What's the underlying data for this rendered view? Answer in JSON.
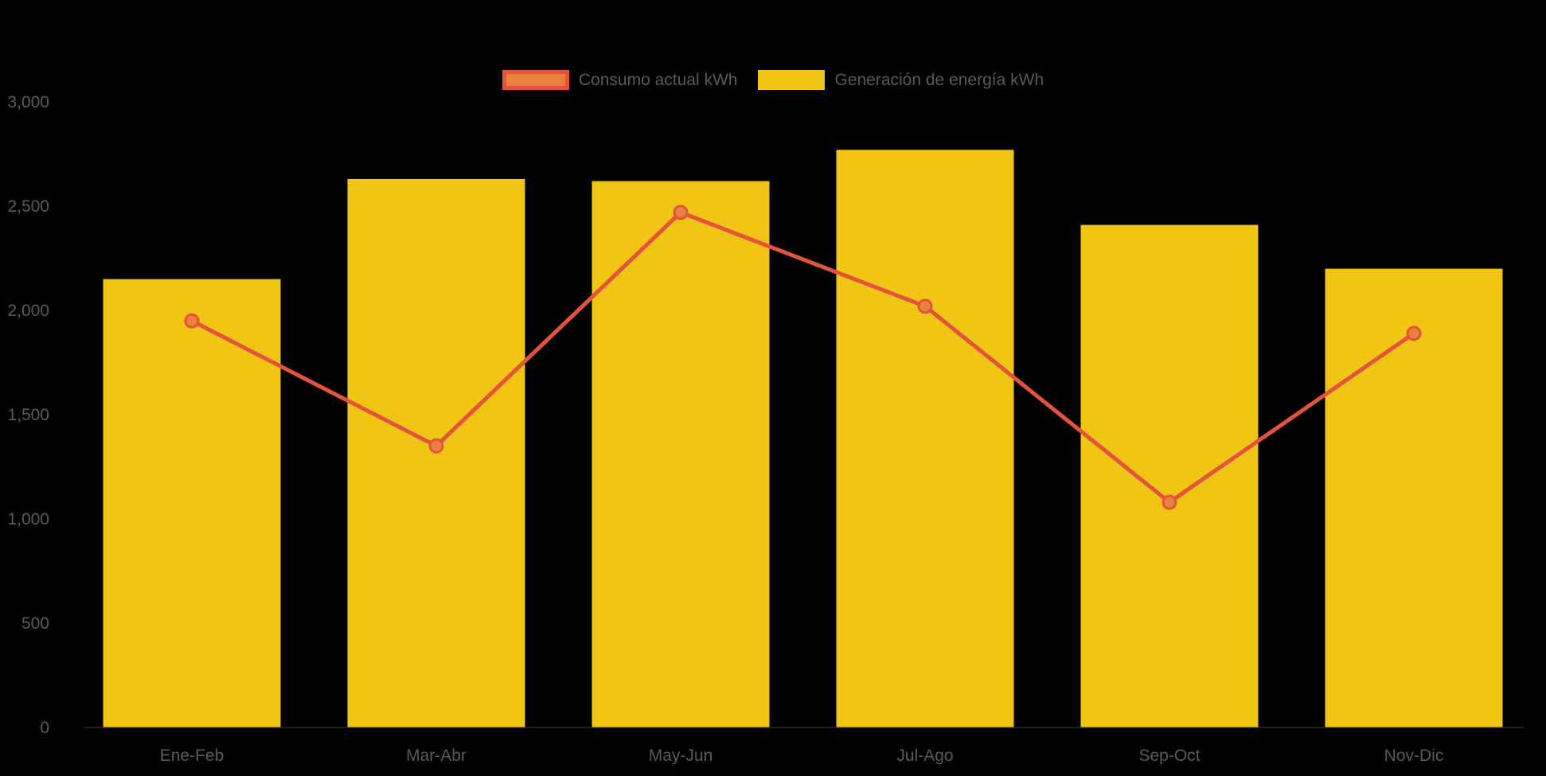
{
  "background_color": "#000000",
  "chart_data": {
    "type": "bar",
    "title": "",
    "subtitle": "",
    "categories": [
      "Ene-Feb",
      "Mar-Abr",
      "May-Jun",
      "Jul-Ago",
      "Sep-Oct",
      "Nov-Dic"
    ],
    "series": [
      {
        "name": "Consumo actual kWh",
        "type": "line",
        "color": "#E5533D",
        "marker_fill": "#E8823C",
        "values": [
          1950,
          1350,
          2470,
          2020,
          1080,
          1890
        ]
      },
      {
        "name": "Generación de energía kWh",
        "type": "bar",
        "color": "#F0C514",
        "values": [
          2150,
          2630,
          2620,
          2770,
          2410,
          2200
        ]
      }
    ],
    "xlabel": "",
    "ylabel": "",
    "ylim": [
      0,
      3000
    ],
    "yticks": [
      0,
      500,
      1000,
      1500,
      2000,
      2500,
      3000
    ],
    "ytick_labels": [
      "0",
      "500",
      "1,000",
      "1,500",
      "2,000",
      "2,500",
      "3,000"
    ],
    "grid": false,
    "legend_position": "top",
    "axis_color": "#3a3a3a",
    "text_color": "#5a5a5a"
  }
}
